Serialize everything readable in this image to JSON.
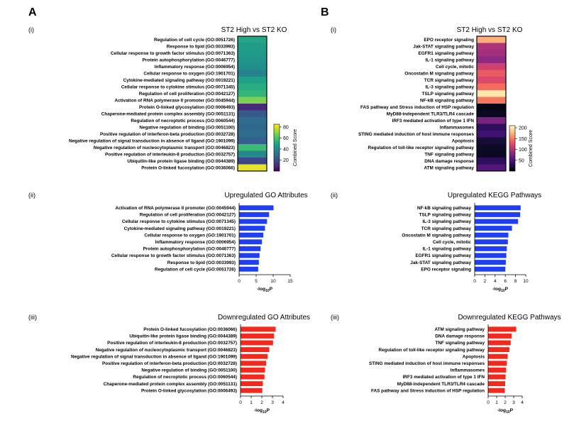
{
  "panels": {
    "A": {
      "letter": "A",
      "heatmap": {
        "numeral": "(i)",
        "title": "ST2 High vs ST2 KO",
        "colorbar": {
          "label": "Combined Score",
          "min": 0,
          "max": 85,
          "ticks": [
            20,
            40,
            60,
            80
          ],
          "palette": "viridis"
        },
        "rows": [
          {
            "label": "Regulation of cell cycle (GO:0051726)",
            "score": 50
          },
          {
            "label": "Response to lipid (GO:0033993)",
            "score": 47
          },
          {
            "label": "Cellular response to growth factor stimulus (GO:0071363)",
            "score": 46
          },
          {
            "label": "Protein autophosphorylation (GO:0046777)",
            "score": 44
          },
          {
            "label": "Inflammatory response (GO:0006954)",
            "score": 42
          },
          {
            "label": "Cellular response to oxygen (GO:1901701)",
            "score": 38
          },
          {
            "label": "Cytokine-mediated signaling pathway (GO:0019221)",
            "score": 48
          },
          {
            "label": "Cellular response to cytokine stimulus (GO:0071345)",
            "score": 52
          },
          {
            "label": "Regulation of cell proliferation (GO:0042127)",
            "score": 56
          },
          {
            "label": "Activation of RNA polymerase II promoter (GO:0045944)",
            "score": 68
          },
          {
            "label": "Protein O-linked glycosylation (GO:0006493)",
            "score": 10
          },
          {
            "label": "Chaperone-mediated protein complex assembly (GO:0051131)",
            "score": 24
          },
          {
            "label": "Regulation of necroptotic process (GO:0060544)",
            "score": 30
          },
          {
            "label": "Negative regulation of binding (GO:0051100)",
            "score": 28
          },
          {
            "label": "Positive regulation of interferon-beta production (GO:0032728)",
            "score": 30
          },
          {
            "label": "Negative regulation of signal transduction in absence of ligand (GO:1901099)",
            "score": 26
          },
          {
            "label": "Negative regulation of nucleocytoplasmic transport (GO:0046823)",
            "score": 58
          },
          {
            "label": "Positive regulation of interleukin-8 production (GO:0032757)",
            "score": 40
          },
          {
            "label": "Ubiquitin-like protein ligase binding (GO:0044389)",
            "score": 18
          },
          {
            "label": "Protein O-linked fucosylation (GO:0036066)",
            "score": 82
          }
        ]
      },
      "up": {
        "numeral": "(ii)",
        "type": "bar",
        "title": "Upregulated GO Attributes",
        "xlabel": "-log10P",
        "xlabel_main": "-log",
        "xlabel_sub": "10",
        "xlabel_tail": "P",
        "xlim": [
          0,
          15
        ],
        "xticks": [
          0,
          5,
          10,
          15
        ],
        "color": "#1f3ff5",
        "categories": [
          "Activation of RNA polymerase II promoter (GO:0045944)",
          "Regulation of cell proliferation (GO:0042127)",
          "Cellular response to cytokine stimulus (GO:0071345)",
          "Cytokine-mediated signaling pathway (GO:0019221)",
          "Cellular response to oxygen (GO:1901701)",
          "Inflammatory response (GO:0006954)",
          "Protein autophosphorylation (GO:0046777)",
          "Cellular response to growth factor stimulus (GO:0071363)",
          "Response to lipid (GO:0033993)",
          "Regulation of cell cycle (GO:0051726)"
        ],
        "values": [
          10.1,
          8.8,
          8.2,
          7.6,
          7.1,
          6.7,
          6.3,
          6.0,
          5.8,
          5.6
        ]
      },
      "down": {
        "numeral": "(iii)",
        "type": "bar",
        "title": "Downregulated GO Attributes",
        "xlabel": "-log10P",
        "xlabel_main": "-log",
        "xlabel_sub": "10",
        "xlabel_tail": "P",
        "xlim": [
          0,
          4
        ],
        "xticks": [
          0,
          1,
          2,
          3,
          4
        ],
        "color": "#f5281b",
        "categories": [
          "Protein O-linked fucosylation (GO:0036066)",
          "Ubiquitin-like protein ligase binding (GO:0044389)",
          "Positive regulation of interleukin-8 production (GO:0032757)",
          "Negative regulation of nucleocytoplasmic transport (GO:0046823)",
          "Negative regulation of signal transduction in absence of ligand (GO:1901099)",
          "Positive regulation of interferon-beta production (GO:0032728)",
          "Negative regulation of binding (GO:0051100)",
          "Regulation of necroptotic process (GO:0060544)",
          "Chaperone-mediated protein complex assembly (GO:0051131)",
          "Protein O-linked glycosylation (GO:0006493)"
        ],
        "values": [
          3.3,
          3.15,
          3.05,
          2.7,
          2.55,
          2.4,
          2.3,
          2.25,
          2.1,
          2.05
        ]
      }
    },
    "B": {
      "letter": "B",
      "heatmap": {
        "numeral": "(i)",
        "title": "ST2 High vs ST2 KO",
        "colorbar": {
          "label": "Combined Score",
          "min": 0,
          "max": 210,
          "ticks": [
            50,
            100,
            150,
            200
          ],
          "palette": "magma"
        },
        "rows": [
          {
            "label": "EPO receptor signaling",
            "score": 175
          },
          {
            "label": "Jak-STAT signaling pathway",
            "score": 100
          },
          {
            "label": "EGFR1 signaling pathway",
            "score": 95
          },
          {
            "label": "IL-1 signaling pathway",
            "score": 85
          },
          {
            "label": "Cell cycle, mitotic",
            "score": 118
          },
          {
            "label": "Oncostatin M signaling pathway",
            "score": 135
          },
          {
            "label": "TCR signaling pathway",
            "score": 125
          },
          {
            "label": "IL-3 signaling pathway",
            "score": 145
          },
          {
            "label": "TSLP signaling pathway",
            "score": 200
          },
          {
            "label": "NF-kB signaling pathway",
            "score": 150
          },
          {
            "label": "FAS pathway and Stress induction of HSP regulation",
            "score": 8
          },
          {
            "label": "MyD88-independent TLR3/TLR4 cascade",
            "score": 12
          },
          {
            "label": "IRF3 mediated activation of type 1 IFN",
            "score": 75
          },
          {
            "label": "Inflammasomes",
            "score": 35
          },
          {
            "label": "STING mediated induction of host immune responses",
            "score": 45
          },
          {
            "label": "Apoptosis",
            "score": 22
          },
          {
            "label": "Regulation of toll-like receptor signaling pathway",
            "score": 15
          },
          {
            "label": "TNF signaling pathway",
            "score": 12
          },
          {
            "label": "DNA damage response",
            "score": 35
          },
          {
            "label": "ATM signaling pathway",
            "score": 55
          }
        ]
      },
      "up": {
        "numeral": "(ii)",
        "type": "bar",
        "title": "Upregulated KEGG Pathways",
        "xlabel": "-log10P",
        "xlabel_main": "-log",
        "xlabel_sub": "10",
        "xlabel_tail": "P",
        "xlim": [
          0,
          10
        ],
        "xticks": [
          0,
          2,
          4,
          6,
          8,
          10
        ],
        "color": "#1f3ff5",
        "categories": [
          "NF-kB signaling pathway",
          "TSLP signaling pathway",
          "IL-3 signaling pathway",
          "TCR signaling pathway",
          "Oncostatin M signaling pathway",
          "Cell cycle, mitotic",
          "IL-1 signaling pathway",
          "EGFR1 signaling pathway",
          "Jak-STAT signaling pathway",
          "EPO receptor signaling"
        ],
        "values": [
          9.0,
          8.9,
          8.5,
          7.3,
          6.6,
          6.5,
          6.3,
          6.2,
          6.1,
          6.0
        ]
      },
      "down": {
        "numeral": "(iii)",
        "type": "bar",
        "title": "Downregulated KEGG Pathways",
        "xlabel": "-log10P",
        "xlabel_main": "-log",
        "xlabel_sub": "10",
        "xlabel_tail": "P",
        "xlim": [
          0,
          4
        ],
        "xticks": [
          0,
          1,
          2,
          3,
          4
        ],
        "color": "#f5281b",
        "categories": [
          "ATM signaling pathway",
          "DNA damage response",
          "TNF signaling pathway",
          "Regulation of toll-like receptor signaling pathway",
          "Apoptosis",
          "STING mediated induction of host immune responses",
          "Inflammasomes",
          "IRF3 mediated activation of type 1 IFN",
          "MyD88-independent TLR3/TLR4 cascade",
          "FAS pathway and Stress induction of HSP regulation"
        ],
        "values": [
          3.3,
          2.75,
          2.65,
          2.5,
          2.3,
          2.2,
          2.1,
          2.05,
          2.0,
          1.95
        ]
      }
    }
  },
  "chart_data": [
    {
      "type": "heatmap",
      "title": "ST2 High vs ST2 KO",
      "rows": [
        "Regulation of cell cycle (GO:0051726)",
        "Response to lipid (GO:0033993)",
        "Cellular response to growth factor stimulus (GO:0071363)",
        "Protein autophosphorylation (GO:0046777)",
        "Inflammatory response (GO:0006954)",
        "Cellular response to oxygen (GO:1901701)",
        "Cytokine-mediated signaling pathway (GO:0019221)",
        "Cellular response to cytokine stimulus (GO:0071345)",
        "Regulation of cell proliferation (GO:0042127)",
        "Activation of RNA polymerase II promoter (GO:0045944)",
        "Protein O-linked glycosylation (GO:0006493)",
        "Chaperone-mediated protein complex assembly (GO:0051131)",
        "Regulation of necroptotic process (GO:0060544)",
        "Negative regulation of binding (GO:0051100)",
        "Positive regulation of interferon-beta production (GO:0032728)",
        "Negative regulation of signal transduction in absence of ligand (GO:1901099)",
        "Negative regulation of nucleocytoplasmic transport (GO:0046823)",
        "Positive regulation of interleukin-8 production (GO:0032757)",
        "Ubiquitin-like protein ligase binding (GO:0044389)",
        "Protein O-linked fucosylation (GO:0036066)"
      ],
      "values": [
        50,
        47,
        46,
        44,
        42,
        38,
        48,
        52,
        56,
        68,
        10,
        24,
        30,
        28,
        30,
        26,
        58,
        40,
        18,
        82
      ],
      "colorbar_label": "Combined Score",
      "colorbar_ticks": [
        20,
        40,
        60,
        80
      ]
    },
    {
      "type": "bar",
      "title": "Upregulated GO Attributes",
      "xlabel": "-log10P",
      "categories": [
        "Activation of RNA polymerase II promoter (GO:0045944)",
        "Regulation of cell proliferation (GO:0042127)",
        "Cellular response to cytokine stimulus (GO:0071345)",
        "Cytokine-mediated signaling pathway (GO:0019221)",
        "Cellular response to oxygen (GO:1901701)",
        "Inflammatory response (GO:0006954)",
        "Protein autophosphorylation (GO:0046777)",
        "Cellular response to growth factor stimulus (GO:0071363)",
        "Response to lipid (GO:0033993)",
        "Regulation of cell cycle (GO:0051726)"
      ],
      "values": [
        10.1,
        8.8,
        8.2,
        7.6,
        7.1,
        6.7,
        6.3,
        6.0,
        5.8,
        5.6
      ],
      "xlim": [
        0,
        15
      ]
    },
    {
      "type": "bar",
      "title": "Downregulated GO Attributes",
      "xlabel": "-log10P",
      "categories": [
        "Protein O-linked fucosylation (GO:0036066)",
        "Ubiquitin-like protein ligase binding (GO:0044389)",
        "Positive regulation of interleukin-8 production (GO:0032757)",
        "Negative regulation of nucleocytoplasmic transport (GO:0046823)",
        "Negative regulation of signal transduction in absence of ligand (GO:1901099)",
        "Positive regulation of interferon-beta production (GO:0032728)",
        "Negative regulation of binding (GO:0051100)",
        "Regulation of necroptotic process (GO:0060544)",
        "Chaperone-mediated protein complex assembly (GO:0051131)",
        "Protein O-linked glycosylation (GO:0006493)"
      ],
      "values": [
        3.3,
        3.15,
        3.05,
        2.7,
        2.55,
        2.4,
        2.3,
        2.25,
        2.1,
        2.05
      ],
      "xlim": [
        0,
        4
      ]
    },
    {
      "type": "heatmap",
      "title": "ST2 High vs ST2 KO",
      "rows": [
        "EPO receptor signaling",
        "Jak-STAT signaling pathway",
        "EGFR1 signaling pathway",
        "IL-1 signaling pathway",
        "Cell cycle, mitotic",
        "Oncostatin M signaling pathway",
        "TCR signaling pathway",
        "IL-3 signaling pathway",
        "TSLP signaling pathway",
        "NF-kB signaling pathway",
        "FAS pathway and Stress induction of HSP regulation",
        "MyD88-independent TLR3/TLR4 cascade",
        "IRF3 mediated activation of type 1 IFN",
        "Inflammasomes",
        "STING mediated induction of host immune responses",
        "Apoptosis",
        "Regulation of toll-like receptor signaling pathway",
        "TNF signaling pathway",
        "DNA damage response",
        "ATM signaling pathway"
      ],
      "values": [
        175,
        100,
        95,
        85,
        118,
        135,
        125,
        145,
        200,
        150,
        8,
        12,
        75,
        35,
        45,
        22,
        15,
        12,
        35,
        55
      ],
      "colorbar_label": "Combined Score",
      "colorbar_ticks": [
        50,
        100,
        150,
        200
      ]
    },
    {
      "type": "bar",
      "title": "Upregulated KEGG Pathways",
      "xlabel": "-log10P",
      "categories": [
        "NF-kB signaling pathway",
        "TSLP signaling pathway",
        "IL-3 signaling pathway",
        "TCR signaling pathway",
        "Oncostatin M signaling pathway",
        "Cell cycle, mitotic",
        "IL-1 signaling pathway",
        "EGFR1 signaling pathway",
        "Jak-STAT signaling pathway",
        "EPO receptor signaling"
      ],
      "values": [
        9.0,
        8.9,
        8.5,
        7.3,
        6.6,
        6.5,
        6.3,
        6.2,
        6.1,
        6.0
      ],
      "xlim": [
        0,
        10
      ]
    },
    {
      "type": "bar",
      "title": "Downregulated KEGG Pathways",
      "xlabel": "-log10P",
      "categories": [
        "ATM signaling pathway",
        "DNA damage response",
        "TNF signaling pathway",
        "Regulation of toll-like receptor signaling pathway",
        "Apoptosis",
        "STING mediated induction of host immune responses",
        "Inflammasomes",
        "IRF3 mediated activation of type 1 IFN",
        "MyD88-independent TLR3/TLR4 cascade",
        "FAS pathway and Stress induction of HSP regulation"
      ],
      "values": [
        3.3,
        2.75,
        2.65,
        2.5,
        2.3,
        2.2,
        2.1,
        2.05,
        2.0,
        1.95
      ],
      "xlim": [
        0,
        4
      ]
    }
  ]
}
